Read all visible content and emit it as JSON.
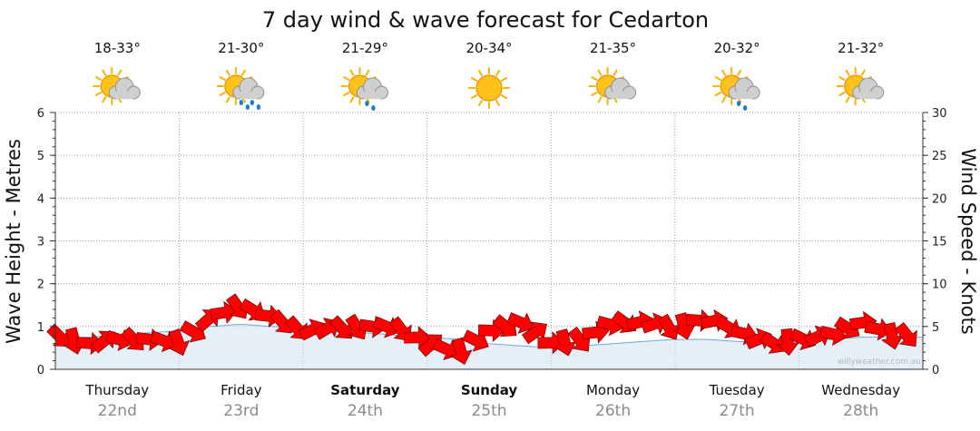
{
  "chart_data": {
    "type": "line",
    "title": "7 day wind & wave forecast for Cedarton",
    "y_left_label": "Wave Height - Metres",
    "y_right_label": "Wind Speed - Knots",
    "y_left_range": [
      0,
      6
    ],
    "y_right_range": [
      0,
      30
    ],
    "y_left_ticks": [
      "0",
      "1",
      "2",
      "3",
      "4",
      "5",
      "6"
    ],
    "y_right_ticks": [
      "0",
      "5",
      "10",
      "15",
      "20",
      "25",
      "30"
    ],
    "grid": true,
    "watermark": "willyweather.com.au",
    "days": [
      {
        "name": "Thursday",
        "date": "22nd",
        "temp": "18-33°",
        "icon": "partly-cloudy-icon",
        "bold": false
      },
      {
        "name": "Friday",
        "date": "23rd",
        "temp": "21-30°",
        "icon": "showers-icon",
        "bold": false
      },
      {
        "name": "Saturday",
        "date": "24th",
        "temp": "21-29°",
        "icon": "light-showers-icon",
        "bold": true
      },
      {
        "name": "Sunday",
        "date": "25th",
        "temp": "20-34°",
        "icon": "sunny-icon",
        "bold": true
      },
      {
        "name": "Monday",
        "date": "26th",
        "temp": "21-35°",
        "icon": "partly-cloudy-icon",
        "bold": false
      },
      {
        "name": "Tuesday",
        "date": "27th",
        "temp": "20-32°",
        "icon": "light-showers-icon",
        "bold": false
      },
      {
        "name": "Wednesday",
        "date": "28th",
        "temp": "21-32°",
        "icon": "partly-cloudy-icon",
        "bold": false
      }
    ],
    "wave_series": {
      "name": "Wave Height (m)",
      "x_days": [
        0,
        0.25,
        0.5,
        0.75,
        1,
        1.25,
        1.5,
        1.75,
        2,
        2.25,
        2.5,
        2.75,
        3,
        3.25,
        3.5,
        3.75,
        4,
        4.25,
        4.5,
        4.75,
        5,
        5.25,
        5.5,
        5.75,
        6,
        6.25,
        6.5,
        6.75,
        7
      ],
      "values": [
        0.7,
        0.75,
        0.8,
        0.85,
        0.9,
        1.0,
        1.05,
        1.0,
        0.95,
        0.9,
        0.85,
        0.8,
        0.75,
        0.7,
        0.6,
        0.55,
        0.5,
        0.55,
        0.6,
        0.65,
        0.7,
        0.7,
        0.65,
        0.6,
        0.65,
        0.7,
        0.75,
        0.75,
        0.75
      ]
    },
    "wind_series": {
      "name": "Wind Speed (knots)",
      "x_days": [
        0,
        0.25,
        0.5,
        0.75,
        1,
        1.25,
        1.5,
        1.75,
        2,
        2.25,
        2.5,
        2.75,
        3,
        3.25,
        3.5,
        3.75,
        4,
        4.25,
        4.5,
        4.75,
        5,
        5.25,
        5.5,
        5.75,
        6,
        6.25,
        6.5,
        6.75,
        7
      ],
      "values": [
        4,
        3,
        3.5,
        3.5,
        3.2,
        6,
        7.5,
        6,
        4.5,
        4.8,
        5,
        5,
        3,
        2,
        4.5,
        5.5,
        3,
        3.5,
        5.5,
        5.5,
        4.8,
        6,
        4.5,
        3,
        3.5,
        4,
        5.5,
        4,
        4
      ]
    }
  }
}
